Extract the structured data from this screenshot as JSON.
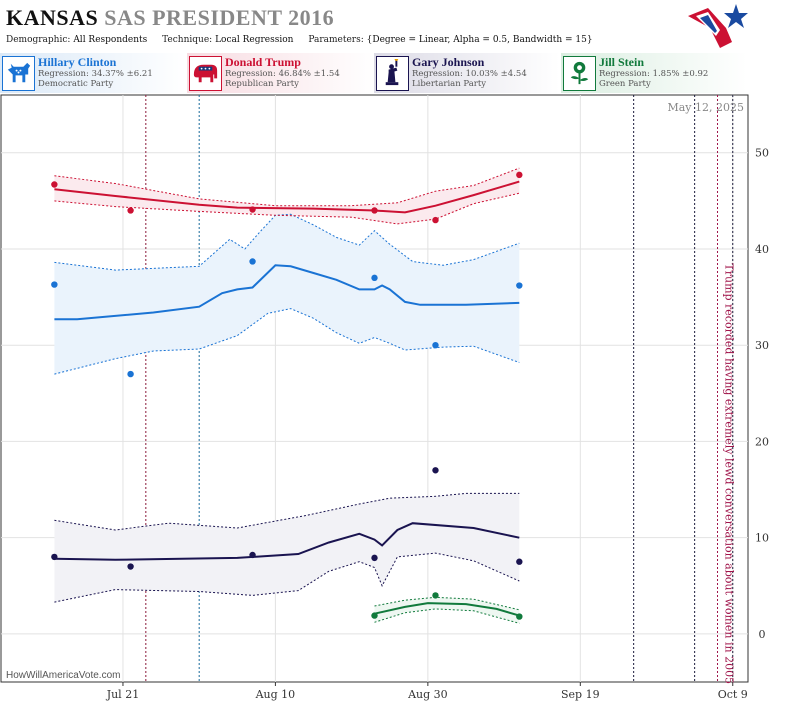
{
  "header": {
    "state": "KANSAS",
    "race": "SAS PRESIDENT 2016",
    "params": [
      {
        "label": "Demographic:",
        "value": "All Respondents"
      },
      {
        "label": "Technique:",
        "value": "Local Regression"
      },
      {
        "label": "Parameters:",
        "value": "{Degree = Linear, Alpha = 0.5, Bandwidth = 15}"
      }
    ]
  },
  "candidates": [
    {
      "name": "Hillary Clinton",
      "regression": "Regression: 34.37% ±6.21",
      "party": "Democratic Party",
      "color": "#1a73d4",
      "icon": "donkey-icon"
    },
    {
      "name": "Donald Trump",
      "regression": "Regression: 46.84% ±1.54",
      "party": "Republican Party",
      "color": "#cc1133",
      "icon": "elephant-icon"
    },
    {
      "name": "Gary Johnson",
      "regression": "Regression: 10.03% ±4.54",
      "party": "Libertarian Party",
      "color": "#1a1450",
      "icon": "statue-of-liberty-icon"
    },
    {
      "name": "Jill Stein",
      "regression": "Regression: 1.85% ±0.92",
      "party": "Green Party",
      "color": "#117a3c",
      "icon": "sunflower-icon"
    }
  ],
  "chart_data": {
    "type": "line",
    "date_stamp": "May 12, 2025",
    "credit": "HowWillAmericaVote.com",
    "annotation": "Trump recorded having extremely lewd conversation about women in 2005",
    "xlim": [
      "2016-07-05",
      "2016-10-11"
    ],
    "ylim": [
      -5,
      56
    ],
    "yticks": [
      0,
      10,
      20,
      30,
      40,
      50
    ],
    "xticks": [
      {
        "date": "2016-07-21",
        "label": "Jul 21"
      },
      {
        "date": "2016-08-10",
        "label": "Aug 10"
      },
      {
        "date": "2016-08-30",
        "label": "Aug 30"
      },
      {
        "date": "2016-09-19",
        "label": "Sep 19"
      },
      {
        "date": "2016-10-09",
        "label": "Oct 9"
      }
    ],
    "grid": true,
    "event_lines": [
      {
        "date": "2016-07-24",
        "color": "#8b1a3a"
      },
      {
        "date": "2016-07-31",
        "color": "#1a6a9a"
      },
      {
        "date": "2016-09-26",
        "color": "#1a1a3a"
      },
      {
        "date": "2016-10-04",
        "color": "#1a1a3a"
      },
      {
        "date": "2016-10-07",
        "color": "#a0144a"
      },
      {
        "date": "2016-10-09",
        "color": "#1a1a3a"
      }
    ],
    "series": [
      {
        "name": "Hillary Clinton",
        "color": "#1a73d4",
        "band": "#eaf3fc",
        "points": [
          [
            "2016-07-12",
            36.3
          ],
          [
            "2016-07-22",
            27
          ],
          [
            "2016-08-07",
            38.7
          ],
          [
            "2016-08-23",
            37
          ],
          [
            "2016-08-31",
            30
          ],
          [
            "2016-09-11",
            36.2
          ]
        ],
        "line": [
          [
            "2016-07-12",
            32.7
          ],
          [
            "2016-07-15",
            32.7
          ],
          [
            "2016-07-25",
            33.4
          ],
          [
            "2016-07-31",
            34
          ],
          [
            "2016-08-03",
            35.4
          ],
          [
            "2016-08-05",
            35.8
          ],
          [
            "2016-08-07",
            36
          ],
          [
            "2016-08-10",
            38.3
          ],
          [
            "2016-08-12",
            38.2
          ],
          [
            "2016-08-15",
            37.5
          ],
          [
            "2016-08-18",
            36.8
          ],
          [
            "2016-08-21",
            35.8
          ],
          [
            "2016-08-23",
            35.8
          ],
          [
            "2016-08-24",
            36.2
          ],
          [
            "2016-08-25",
            35.8
          ],
          [
            "2016-08-27",
            34.5
          ],
          [
            "2016-08-29",
            34.2
          ],
          [
            "2016-09-04",
            34.2
          ],
          [
            "2016-09-11",
            34.4
          ]
        ],
        "upper": [
          [
            "2016-07-12",
            38.6
          ],
          [
            "2016-07-20",
            37.8
          ],
          [
            "2016-07-31",
            38.2
          ],
          [
            "2016-08-04",
            41
          ],
          [
            "2016-08-06",
            40
          ],
          [
            "2016-08-08",
            41.8
          ],
          [
            "2016-08-10",
            43.5
          ],
          [
            "2016-08-12",
            43.6
          ],
          [
            "2016-08-15",
            42.5
          ],
          [
            "2016-08-18",
            41.2
          ],
          [
            "2016-08-21",
            40.4
          ],
          [
            "2016-08-23",
            41.9
          ],
          [
            "2016-08-25",
            40.5
          ],
          [
            "2016-08-28",
            38.7
          ],
          [
            "2016-09-01",
            38.3
          ],
          [
            "2016-09-05",
            38.9
          ],
          [
            "2016-09-11",
            40.6
          ]
        ],
        "lower": [
          [
            "2016-07-12",
            27
          ],
          [
            "2016-07-20",
            28.6
          ],
          [
            "2016-07-25",
            29.4
          ],
          [
            "2016-07-31",
            29.6
          ],
          [
            "2016-08-05",
            31
          ],
          [
            "2016-08-09",
            33.3
          ],
          [
            "2016-08-12",
            33.8
          ],
          [
            "2016-08-15",
            32.8
          ],
          [
            "2016-08-18",
            31.3
          ],
          [
            "2016-08-21",
            30.2
          ],
          [
            "2016-08-23",
            30.8
          ],
          [
            "2016-08-25",
            30.2
          ],
          [
            "2016-08-27",
            29.5
          ],
          [
            "2016-09-01",
            29.8
          ],
          [
            "2016-09-05",
            29.9
          ],
          [
            "2016-09-11",
            28.2
          ]
        ]
      },
      {
        "name": "Donald Trump",
        "color": "#cc1133",
        "band": "#fbeaee",
        "points": [
          [
            "2016-07-12",
            46.7
          ],
          [
            "2016-07-22",
            44
          ],
          [
            "2016-08-07",
            44.1
          ],
          [
            "2016-08-23",
            44
          ],
          [
            "2016-08-31",
            43
          ],
          [
            "2016-09-11",
            47.7
          ]
        ],
        "line": [
          [
            "2016-07-12",
            46.2
          ],
          [
            "2016-07-20",
            45.5
          ],
          [
            "2016-07-31",
            44.6
          ],
          [
            "2016-08-05",
            44.3
          ],
          [
            "2016-08-15",
            44.2
          ],
          [
            "2016-08-23",
            44
          ],
          [
            "2016-08-27",
            43.8
          ],
          [
            "2016-08-31",
            44.5
          ],
          [
            "2016-09-05",
            45.6
          ],
          [
            "2016-09-11",
            47
          ]
        ],
        "upper": [
          [
            "2016-07-12",
            47.6
          ],
          [
            "2016-07-20",
            46.8
          ],
          [
            "2016-07-31",
            45.2
          ],
          [
            "2016-08-10",
            44.5
          ],
          [
            "2016-08-20",
            44.5
          ],
          [
            "2016-08-26",
            44.8
          ],
          [
            "2016-08-31",
            46
          ],
          [
            "2016-09-05",
            46.6
          ],
          [
            "2016-09-11",
            48.4
          ]
        ],
        "lower": [
          [
            "2016-07-12",
            45
          ],
          [
            "2016-07-20",
            44.4
          ],
          [
            "2016-07-31",
            43.9
          ],
          [
            "2016-08-10",
            43.5
          ],
          [
            "2016-08-20",
            43.3
          ],
          [
            "2016-08-26",
            42.6
          ],
          [
            "2016-08-31",
            43.1
          ],
          [
            "2016-09-05",
            44.7
          ],
          [
            "2016-09-11",
            45.8
          ]
        ]
      },
      {
        "name": "Gary Johnson",
        "color": "#1a1450",
        "band": "#f2f2f6",
        "points": [
          [
            "2016-07-12",
            8
          ],
          [
            "2016-07-22",
            7
          ],
          [
            "2016-08-07",
            8.2
          ],
          [
            "2016-08-23",
            7.9
          ],
          [
            "2016-08-31",
            17
          ],
          [
            "2016-09-11",
            7.5
          ]
        ],
        "line": [
          [
            "2016-07-12",
            7.8
          ],
          [
            "2016-07-20",
            7.7
          ],
          [
            "2016-08-05",
            7.9
          ],
          [
            "2016-08-13",
            8.3
          ],
          [
            "2016-08-17",
            9.5
          ],
          [
            "2016-08-21",
            10.4
          ],
          [
            "2016-08-23",
            9.8
          ],
          [
            "2016-08-24",
            9.2
          ],
          [
            "2016-08-26",
            10.8
          ],
          [
            "2016-08-28",
            11.5
          ],
          [
            "2016-09-05",
            11
          ],
          [
            "2016-09-11",
            10
          ]
        ],
        "upper": [
          [
            "2016-07-12",
            11.8
          ],
          [
            "2016-07-20",
            10.8
          ],
          [
            "2016-07-27",
            11.5
          ],
          [
            "2016-08-05",
            11
          ],
          [
            "2016-08-14",
            12.3
          ],
          [
            "2016-08-21",
            13.5
          ],
          [
            "2016-08-25",
            14.1
          ],
          [
            "2016-08-31",
            14.3
          ],
          [
            "2016-09-04",
            14.6
          ],
          [
            "2016-09-11",
            14.6
          ]
        ],
        "lower": [
          [
            "2016-07-12",
            3.3
          ],
          [
            "2016-07-20",
            4.6
          ],
          [
            "2016-07-31",
            4.4
          ],
          [
            "2016-08-07",
            4
          ],
          [
            "2016-08-13",
            4.5
          ],
          [
            "2016-08-17",
            6.5
          ],
          [
            "2016-08-21",
            7.5
          ],
          [
            "2016-08-23",
            6.9
          ],
          [
            "2016-08-24",
            5
          ],
          [
            "2016-08-26",
            8
          ],
          [
            "2016-08-31",
            8.4
          ],
          [
            "2016-09-05",
            7.6
          ],
          [
            "2016-09-11",
            5.5
          ]
        ]
      },
      {
        "name": "Jill Stein",
        "color": "#117a3c",
        "band": "#eef7f1",
        "points": [
          [
            "2016-08-23",
            1.9
          ],
          [
            "2016-08-31",
            4
          ],
          [
            "2016-09-11",
            1.8
          ]
        ],
        "line": [
          [
            "2016-08-23",
            2.1
          ],
          [
            "2016-08-27",
            2.8
          ],
          [
            "2016-08-30",
            3.2
          ],
          [
            "2016-09-04",
            3.1
          ],
          [
            "2016-09-08",
            2.6
          ],
          [
            "2016-09-11",
            1.9
          ]
        ],
        "upper": [
          [
            "2016-08-23",
            2.9
          ],
          [
            "2016-08-27",
            3.5
          ],
          [
            "2016-08-31",
            3.8
          ],
          [
            "2016-09-05",
            3.6
          ],
          [
            "2016-09-11",
            2.5
          ]
        ],
        "lower": [
          [
            "2016-08-23",
            1.2
          ],
          [
            "2016-08-27",
            2.2
          ],
          [
            "2016-08-31",
            2.6
          ],
          [
            "2016-09-05",
            2.4
          ],
          [
            "2016-09-11",
            1.1
          ]
        ]
      }
    ]
  }
}
